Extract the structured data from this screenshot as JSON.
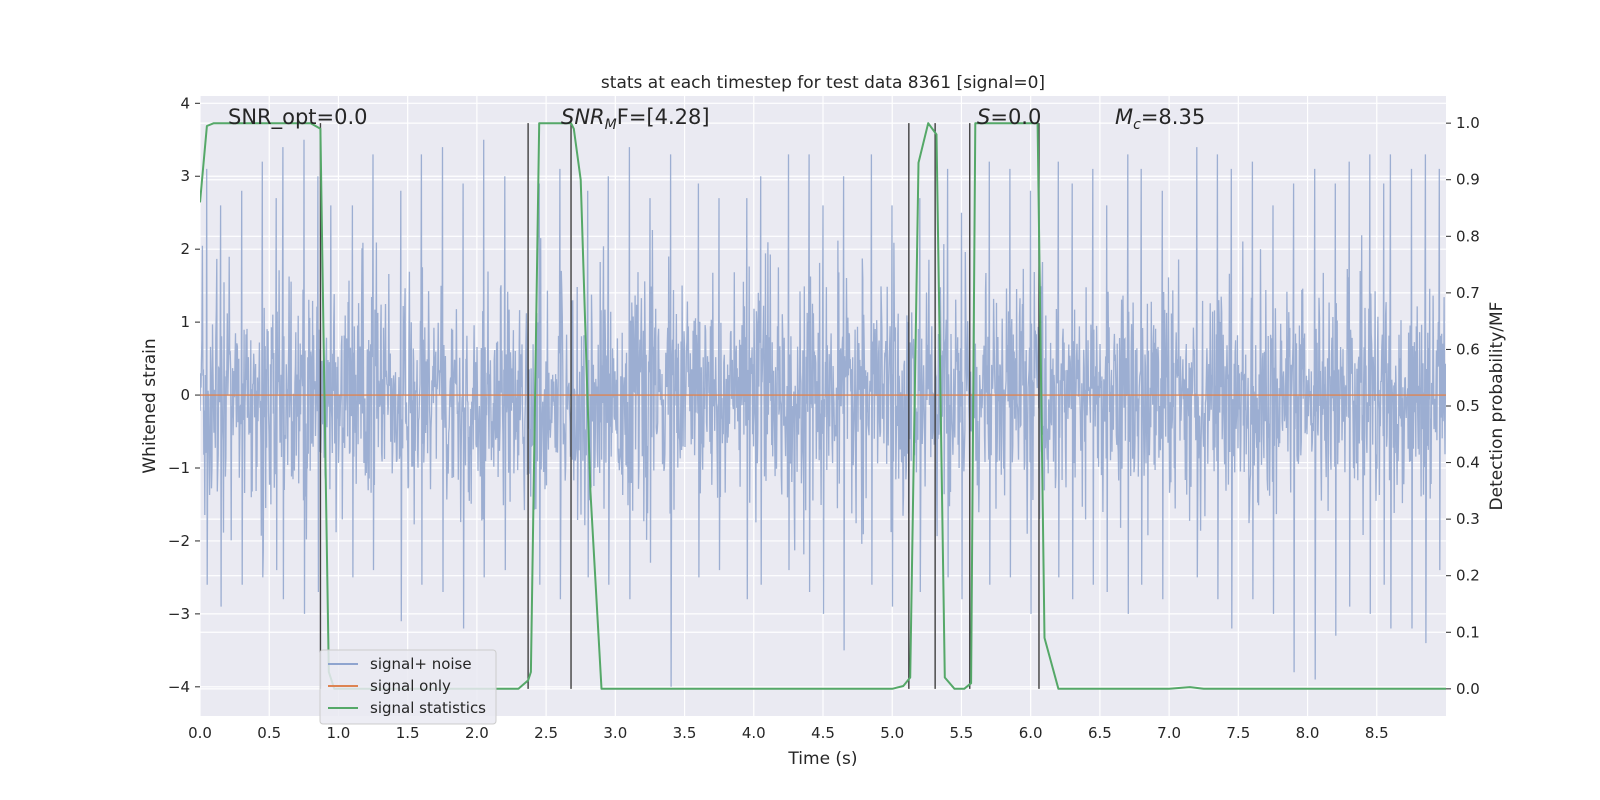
{
  "chart_data": {
    "type": "line",
    "title": "stats at each timestep for test data 8361 [signal=0]",
    "xlabel": "Time (s)",
    "ylabel_left": "Whitened strain",
    "ylabel_right": "Detection probability/MF",
    "xlim": [
      0.0,
      9.0
    ],
    "ylim_left": [
      -4.4,
      4.1
    ],
    "ylim_right": [
      -0.048,
      1.048
    ],
    "x_ticks": [
      "0.0",
      "0.5",
      "1.0",
      "1.5",
      "2.0",
      "2.5",
      "3.0",
      "3.5",
      "4.0",
      "4.5",
      "5.0",
      "5.5",
      "6.0",
      "6.5",
      "7.0",
      "7.5",
      "8.0",
      "8.5"
    ],
    "y_ticks_left": [
      "−4",
      "−3",
      "−2",
      "−1",
      "0",
      "1",
      "2",
      "3",
      "4"
    ],
    "y_ticks_right": [
      "0.0",
      "0.1",
      "0.2",
      "0.3",
      "0.4",
      "0.5",
      "0.6",
      "0.7",
      "0.8",
      "0.9",
      "1.0"
    ],
    "grid": true,
    "background": "#eaeaf2",
    "annotations": [
      {
        "text": "SNR_opt=0.0",
        "x": 0.2,
        "y": 1.0
      },
      {
        "base": "SNR",
        "sub": "M",
        "rest": "F=[4.28]",
        "x": 2.6,
        "y": 1.0
      },
      {
        "base": "S",
        "rest": "=0.0",
        "x": 5.6,
        "y": 1.0
      },
      {
        "base": "M",
        "sub": "c",
        "rest": "=8.35",
        "x": 6.6,
        "y": 1.0
      }
    ],
    "legend": {
      "placement": "lower-left",
      "entries": [
        {
          "label": "signal+ noise",
          "color": "#8fa4cf"
        },
        {
          "label": "signal only",
          "color": "#dd8452"
        },
        {
          "label": "signal statistics",
          "color": "#55a868"
        }
      ]
    },
    "noise_series": {
      "name": "signal+ noise",
      "color": "#98abd0",
      "core_sigma": 0.75,
      "peaks": [
        [
          0.05,
          3.1,
          -2.6
        ],
        [
          0.15,
          2.6,
          -2.9
        ],
        [
          0.3,
          2.8,
          -2.6
        ],
        [
          0.45,
          3.2,
          -2.5
        ],
        [
          0.55,
          2.7,
          -2.4
        ],
        [
          0.6,
          3.4,
          -2.8
        ],
        [
          0.75,
          3.5,
          -3.0
        ],
        [
          0.85,
          3.0,
          -2.7
        ],
        [
          1.1,
          2.6,
          -2.5
        ],
        [
          1.25,
          3.3,
          -2.4
        ],
        [
          1.45,
          2.8,
          -3.1
        ],
        [
          1.6,
          3.3,
          -2.6
        ],
        [
          1.75,
          3.4,
          -2.7
        ],
        [
          1.9,
          2.9,
          -3.2
        ],
        [
          2.05,
          3.5,
          -2.5
        ],
        [
          2.2,
          3.0,
          -2.4
        ],
        [
          2.45,
          2.9,
          -2.6
        ],
        [
          2.6,
          3.1,
          -2.8
        ],
        [
          2.8,
          2.8,
          -2.5
        ],
        [
          2.95,
          3.0,
          -2.6
        ],
        [
          3.1,
          3.4,
          -2.8
        ],
        [
          3.25,
          2.7,
          -2.3
        ],
        [
          3.4,
          3.3,
          -4.0
        ],
        [
          3.6,
          2.9,
          -2.5
        ],
        [
          3.75,
          2.7,
          -2.4
        ],
        [
          3.95,
          2.7,
          -2.8
        ],
        [
          4.05,
          3.0,
          -2.6
        ],
        [
          4.25,
          3.3,
          -2.4
        ],
        [
          4.4,
          3.3,
          -2.7
        ],
        [
          4.5,
          2.6,
          -3.0
        ],
        [
          4.65,
          3.0,
          -3.5
        ],
        [
          4.85,
          3.3,
          -2.6
        ],
        [
          5.0,
          2.6,
          -2.9
        ],
        [
          5.2,
          2.7,
          -2.7
        ],
        [
          5.4,
          3.1,
          -2.5
        ],
        [
          5.5,
          2.5,
          -2.8
        ],
        [
          5.7,
          3.2,
          -2.6
        ],
        [
          5.85,
          3.1,
          -2.5
        ],
        [
          6.0,
          2.8,
          -3.0
        ],
        [
          6.2,
          3.2,
          -2.5
        ],
        [
          6.3,
          2.9,
          -2.8
        ],
        [
          6.45,
          3.1,
          -2.6
        ],
        [
          6.55,
          2.6,
          -2.7
        ],
        [
          6.7,
          3.3,
          -3.0
        ],
        [
          6.8,
          3.1,
          -2.6
        ],
        [
          6.95,
          2.8,
          -2.8
        ],
        [
          7.2,
          3.4,
          -2.5
        ],
        [
          7.35,
          3.3,
          -2.8
        ],
        [
          7.45,
          3.1,
          -3.2
        ],
        [
          7.6,
          3.2,
          -2.8
        ],
        [
          7.75,
          2.6,
          -3.0
        ],
        [
          7.9,
          2.9,
          -3.8
        ],
        [
          8.05,
          3.1,
          -3.9
        ],
        [
          8.2,
          2.9,
          -3.3
        ],
        [
          8.3,
          3.2,
          -2.9
        ],
        [
          8.45,
          3.3,
          -3.0
        ],
        [
          8.55,
          2.9,
          -2.6
        ],
        [
          8.6,
          3.3,
          -3.2
        ],
        [
          8.75,
          3.1,
          -3.2
        ],
        [
          8.85,
          3.3,
          -3.4
        ],
        [
          8.95,
          3.1,
          -2.4
        ]
      ]
    },
    "signal_only_series": {
      "name": "signal only",
      "color": "#dd8452",
      "x": [
        0.0,
        9.0
      ],
      "y": [
        0.0,
        0.0
      ]
    },
    "statistics_series": {
      "name": "signal statistics",
      "color": "#55a868",
      "x": [
        0.0,
        0.05,
        0.1,
        0.2,
        0.8,
        0.87,
        0.9,
        0.93,
        0.97,
        1.0,
        2.3,
        2.37,
        2.39,
        2.45,
        2.55,
        2.68,
        2.7,
        2.75,
        2.82,
        2.9,
        4.0,
        5.0,
        5.08,
        5.13,
        5.19,
        5.26,
        5.32,
        5.38,
        5.45,
        5.52,
        5.57,
        5.6,
        5.65,
        6.05,
        6.1,
        6.2,
        7.0,
        7.15,
        7.25,
        8.0,
        9.0
      ],
      "y": [
        0.86,
        0.995,
        1.0,
        1.0,
        1.0,
        0.99,
        0.5,
        0.03,
        0.0,
        0.0,
        0.0,
        0.015,
        0.03,
        1.0,
        1.0,
        1.0,
        0.99,
        0.9,
        0.35,
        0.0,
        0.0,
        0.0,
        0.005,
        0.02,
        0.93,
        1.0,
        0.98,
        0.02,
        0.0,
        0.0,
        0.01,
        1.0,
        1.0,
        1.0,
        0.09,
        0.0,
        0.0,
        0.003,
        0.0,
        0.0,
        0.0
      ]
    },
    "vertical_lines": {
      "color": "#404040",
      "x": [
        0.87,
        2.37,
        2.68,
        5.12,
        5.31,
        5.56,
        6.06
      ],
      "y_range_right": [
        0.0,
        1.0
      ]
    }
  }
}
